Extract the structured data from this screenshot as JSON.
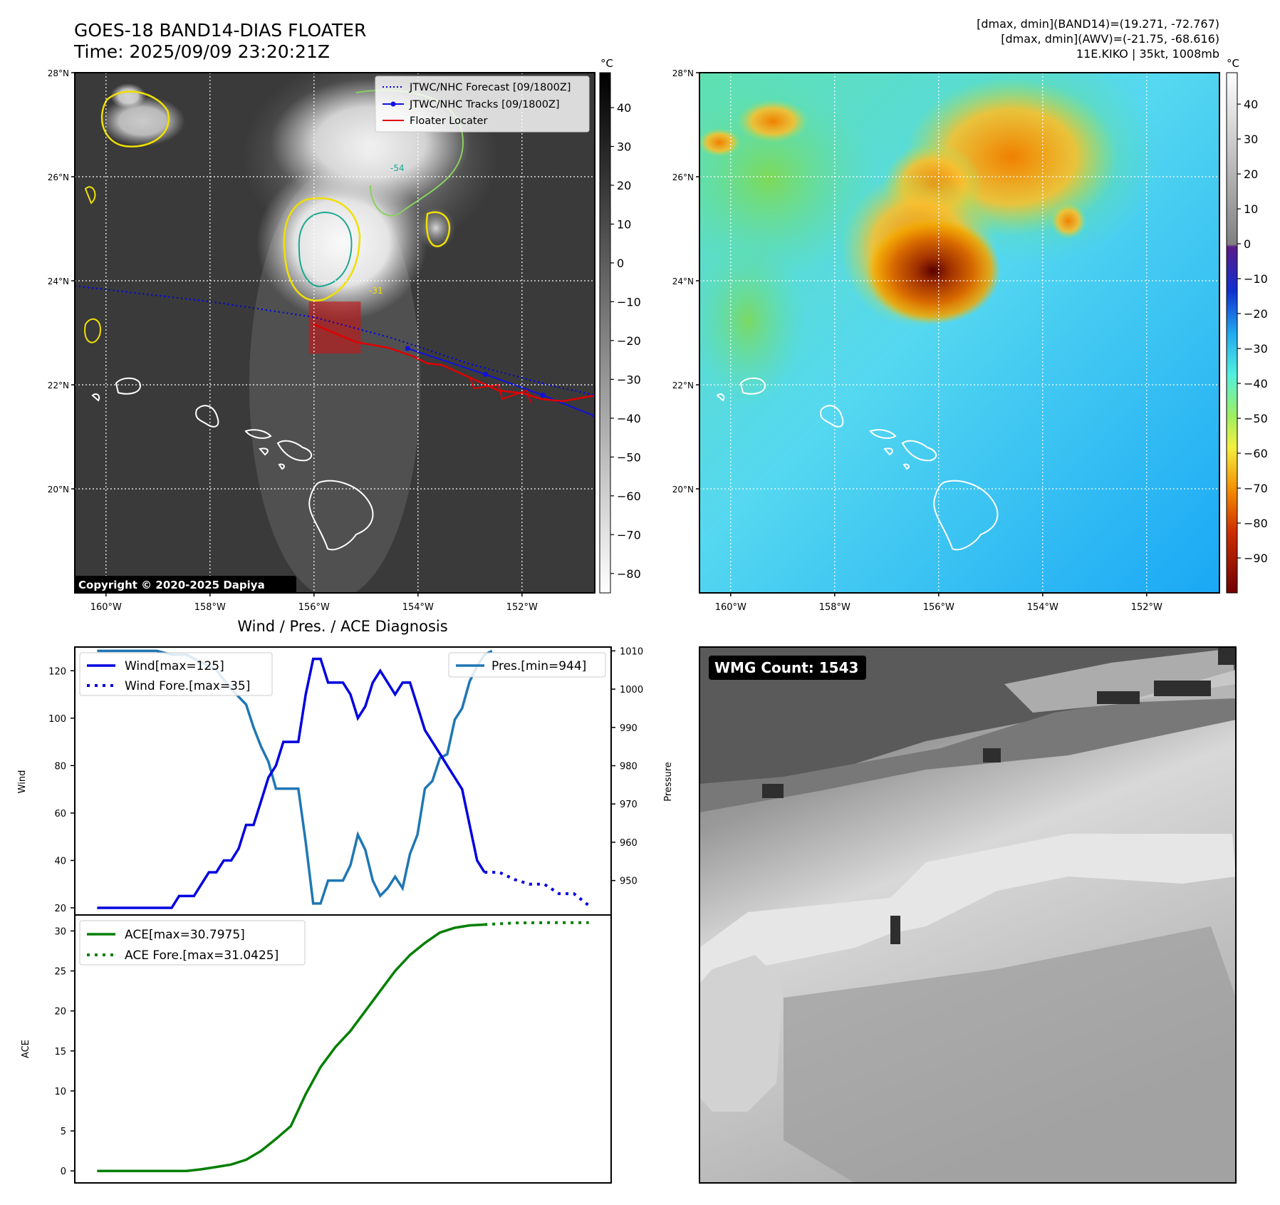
{
  "header": {
    "title": "GOES-18 BAND14-DIAS FLOATER",
    "time": "Time: 2025/09/09 23:20:21Z",
    "info": [
      "[dmax, dmin](BAND14)=(19.271, -72.767)",
      "[dmax, dmin](AWV)=(-21.75, -68.616)",
      "11E.KIKO | 35kt, 1008mb"
    ]
  },
  "map_axes": {
    "lat_labels": [
      "28°N",
      "26°N",
      "24°N",
      "22°N",
      "20°N"
    ],
    "lat_values": [
      28,
      26,
      24,
      22,
      20
    ],
    "lon_labels": [
      "160°W",
      "158°W",
      "156°W",
      "154°W",
      "152°W"
    ],
    "lon_values": [
      -160,
      -158,
      -156,
      -154,
      -152
    ],
    "lat_range": [
      18.0,
      28.0
    ],
    "lon_range": [
      -160.6,
      -150.6
    ]
  },
  "ir_map": {
    "legend": [
      "JTWC/NHC Forecast [09/1800Z]",
      "JTWC/NHC Tracks [09/1800Z]",
      "Floater Locater"
    ],
    "copyright": "Copyright © 2020-2025 Dapiya",
    "colorbar_unit": "°C",
    "colorbar_ticks": [
      "40",
      "30",
      "20",
      "10",
      "0",
      "−10",
      "−20",
      "−30",
      "−40",
      "−50",
      "−60",
      "−70",
      "−80"
    ],
    "colorbar_values": [
      40,
      30,
      20,
      10,
      0,
      -10,
      -20,
      -30,
      -40,
      -50,
      -60,
      -70,
      -80
    ],
    "colorbar_range": [
      -85,
      49
    ],
    "contour_labels": [
      "-54",
      "-31"
    ],
    "track_forecast": [
      [
        -160.6,
        23.9
      ],
      [
        -158,
        23.6
      ],
      [
        -156,
        23.3
      ],
      [
        -154.5,
        22.9
      ],
      [
        -153,
        22.4
      ],
      [
        -151.5,
        22.0
      ],
      [
        -150.6,
        21.8
      ]
    ],
    "track_best": [
      [
        -154.2,
        22.7
      ],
      [
        -152.7,
        22.2
      ],
      [
        -151.6,
        21.8
      ],
      [
        -150.6,
        21.4
      ]
    ],
    "floater_box": {
      "lon": [
        -156.1,
        -155.1
      ],
      "lat": [
        22.6,
        23.6
      ]
    }
  },
  "wv_map": {
    "colorbar_unit": "°C",
    "colorbar_ticks": [
      "40",
      "30",
      "20",
      "10",
      "0",
      "−10",
      "−20",
      "−30",
      "−40",
      "−50",
      "−60",
      "−70",
      "−80",
      "−90"
    ],
    "colorbar_values": [
      40,
      30,
      20,
      10,
      0,
      -10,
      -20,
      -30,
      -40,
      -50,
      -60,
      -70,
      -80,
      -90
    ],
    "colorbar_range": [
      -100,
      49
    ]
  },
  "wmg": {
    "label": "WMG Count: 1543"
  },
  "chart_data": [
    {
      "type": "line",
      "title": "Wind / Pres. / ACE Diagnosis",
      "ylabel": "Wind",
      "y2label": "Pressure",
      "ylim": [
        17,
        130
      ],
      "y2lim": [
        941,
        1011
      ],
      "yticks": [
        20,
        40,
        60,
        80,
        100,
        120
      ],
      "y2ticks": [
        950,
        960,
        970,
        980,
        990,
        1000,
        1010
      ],
      "xlim": [
        -3,
        69
      ],
      "series": [
        {
          "name": "Wind[max=125]",
          "x": [
            0,
            1,
            2,
            3,
            4,
            5,
            6,
            7,
            8,
            9,
            10,
            11,
            12,
            13,
            14,
            15,
            16,
            17,
            18,
            19,
            20,
            21,
            22,
            23,
            24,
            25,
            26,
            27,
            28,
            29,
            30,
            31,
            32,
            33,
            34,
            35,
            36,
            37,
            38,
            39,
            40,
            41,
            42,
            43,
            44,
            45,
            46,
            47,
            48,
            49,
            50,
            51,
            52
          ],
          "values": [
            20,
            20,
            20,
            20,
            20,
            20,
            20,
            20,
            20,
            20,
            20,
            25,
            25,
            25,
            30,
            35,
            35,
            40,
            40,
            45,
            55,
            55,
            65,
            75,
            80,
            90,
            90,
            90,
            110,
            125,
            125,
            115,
            115,
            115,
            110,
            100,
            105,
            115,
            120,
            115,
            110,
            115,
            115,
            105,
            95,
            90,
            85,
            80,
            75,
            70,
            55,
            40,
            35
          ]
        },
        {
          "name": "Wind Fore.[max=35]",
          "x": [
            52,
            54,
            56,
            58,
            60,
            62,
            64,
            66
          ],
          "values": [
            35,
            35,
            32,
            30,
            30,
            26,
            26,
            21
          ]
        },
        {
          "name": "Pres.[min=944]",
          "x": [
            0,
            2,
            4,
            6,
            8,
            10,
            12,
            14,
            15,
            16,
            18,
            20,
            21,
            22,
            23,
            24,
            25,
            26,
            27,
            28,
            29,
            30,
            31,
            32,
            33,
            34,
            35,
            36,
            37,
            38,
            39,
            40,
            41,
            42,
            43,
            44,
            45,
            46,
            47,
            48,
            49,
            50,
            51,
            52,
            53
          ],
          "values": [
            1010,
            1010,
            1010,
            1010,
            1010,
            1009,
            1009,
            1007,
            1006,
            1005,
            1000,
            996,
            990,
            985,
            981,
            974,
            974,
            974,
            974,
            960,
            944,
            944,
            950,
            950,
            950,
            954,
            962,
            958,
            950,
            946,
            948,
            951,
            948,
            957,
            962,
            974,
            976,
            982,
            983,
            992,
            995,
            1002,
            1006,
            1009,
            1010
          ]
        }
      ]
    },
    {
      "type": "line",
      "ylabel": "ACE",
      "ylim": [
        -1.5,
        32
      ],
      "yticks": [
        0,
        5,
        10,
        15,
        20,
        25,
        30
      ],
      "xlim": [
        -3,
        69
      ],
      "series": [
        {
          "name": "ACE[max=30.7975]",
          "x": [
            0,
            4,
            8,
            12,
            14,
            16,
            18,
            20,
            22,
            24,
            26,
            28,
            30,
            32,
            34,
            36,
            38,
            40,
            42,
            44,
            46,
            48,
            50,
            52
          ],
          "values": [
            0,
            0,
            0,
            0,
            0.2,
            0.5,
            0.8,
            1.4,
            2.5,
            4.0,
            5.6,
            9.6,
            13.0,
            15.5,
            17.5,
            20.0,
            22.5,
            25.0,
            27.0,
            28.5,
            29.8,
            30.4,
            30.7,
            30.8
          ]
        },
        {
          "name": "ACE Fore.[max=31.0425]",
          "x": [
            52,
            56,
            60,
            64,
            66
          ],
          "values": [
            30.8,
            31.0,
            31.04,
            31.04,
            31.04
          ]
        }
      ]
    }
  ]
}
